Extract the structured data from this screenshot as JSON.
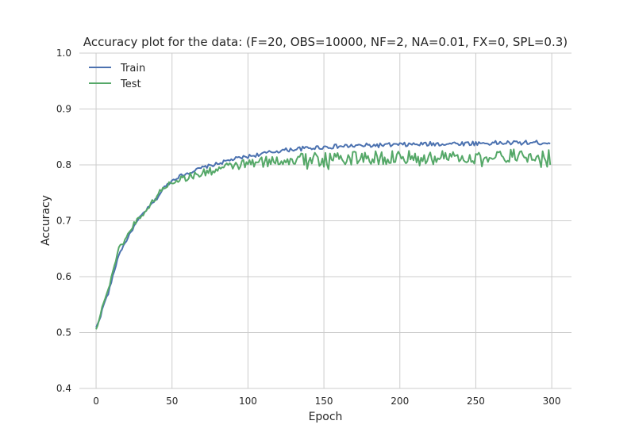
{
  "chart_data": {
    "type": "line",
    "title": "Accuracy plot for the data: (F=20, OBS=10000, NF=2, NA=0.01, FX=0, SPL=0.3)",
    "xlabel": "Epoch",
    "ylabel": "Accuracy",
    "xlim": [
      -11,
      313
    ],
    "ylim": [
      0.4,
      1.0
    ],
    "xticks": [
      0,
      50,
      100,
      150,
      200,
      250,
      300
    ],
    "yticks": [
      0.4,
      0.5,
      0.6,
      0.7,
      0.8,
      0.9,
      1.0
    ],
    "xtick_labels": [
      "0",
      "50",
      "100",
      "150",
      "200",
      "250",
      "300"
    ],
    "ytick_labels": [
      "0.4",
      "0.5",
      "0.6",
      "0.7",
      "0.8",
      "0.9",
      "1.0"
    ],
    "grid": true,
    "legend_position": "top-left",
    "epochs": 300,
    "series": [
      {
        "name": "Train",
        "color": "#4c72b0",
        "anchors": [
          [
            0,
            0.508
          ],
          [
            3,
            0.53
          ],
          [
            5,
            0.55
          ],
          [
            8,
            0.57
          ],
          [
            10,
            0.59
          ],
          [
            13,
            0.62
          ],
          [
            15,
            0.64
          ],
          [
            20,
            0.665
          ],
          [
            25,
            0.69
          ],
          [
            30,
            0.71
          ],
          [
            35,
            0.725
          ],
          [
            40,
            0.74
          ],
          [
            45,
            0.76
          ],
          [
            50,
            0.772
          ],
          [
            55,
            0.78
          ],
          [
            60,
            0.785
          ],
          [
            70,
            0.795
          ],
          [
            80,
            0.802
          ],
          [
            90,
            0.81
          ],
          [
            100,
            0.815
          ],
          [
            110,
            0.82
          ],
          [
            120,
            0.825
          ],
          [
            130,
            0.828
          ],
          [
            140,
            0.83
          ],
          [
            150,
            0.832
          ],
          [
            170,
            0.834
          ],
          [
            200,
            0.836
          ],
          [
            230,
            0.838
          ],
          [
            260,
            0.839
          ],
          [
            299,
            0.84
          ]
        ],
        "noise": [
          0.002,
          0.004
        ]
      },
      {
        "name": "Test",
        "color": "#55a868",
        "anchors": [
          [
            0,
            0.505
          ],
          [
            3,
            0.535
          ],
          [
            5,
            0.555
          ],
          [
            8,
            0.575
          ],
          [
            10,
            0.6
          ],
          [
            13,
            0.63
          ],
          [
            15,
            0.65
          ],
          [
            20,
            0.67
          ],
          [
            25,
            0.695
          ],
          [
            30,
            0.71
          ],
          [
            35,
            0.725
          ],
          [
            40,
            0.745
          ],
          [
            45,
            0.76
          ],
          [
            50,
            0.77
          ],
          [
            55,
            0.775
          ],
          [
            60,
            0.778
          ],
          [
            70,
            0.785
          ],
          [
            80,
            0.792
          ],
          [
            90,
            0.798
          ],
          [
            100,
            0.802
          ],
          [
            110,
            0.805
          ],
          [
            120,
            0.808
          ],
          [
            140,
            0.81
          ],
          [
            160,
            0.812
          ],
          [
            200,
            0.813
          ],
          [
            250,
            0.815
          ],
          [
            299,
            0.817
          ]
        ],
        "noise": [
          0.003,
          0.012
        ]
      }
    ]
  }
}
